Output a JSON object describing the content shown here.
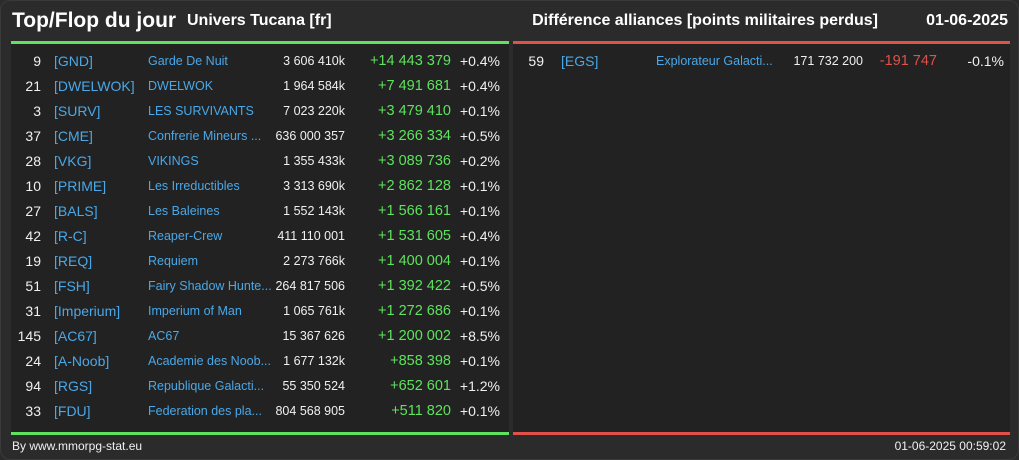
{
  "header": {
    "title": "Top/Flop du jour",
    "universe": "Univers Tucana [fr]",
    "subtitle": "Différence alliances [points militaires perdus]",
    "date": "01-06-2025"
  },
  "top": [
    {
      "rank": "9",
      "tag": "[GND]",
      "name": "Garde De Nuit",
      "points": "3 606 410k",
      "diff": "+14 443 379",
      "pct": "+0.4%"
    },
    {
      "rank": "21",
      "tag": "[DWELWOK]",
      "name": "DWELWOK",
      "points": "1 964 584k",
      "diff": "+7 491 681",
      "pct": "+0.4%"
    },
    {
      "rank": "3",
      "tag": "[SURV]",
      "name": "LES SURVIVANTS",
      "points": "7 023 220k",
      "diff": "+3 479 410",
      "pct": "+0.1%"
    },
    {
      "rank": "37",
      "tag": "[CME]",
      "name": "Confrerie Mineurs ...",
      "points": "636 000 357",
      "diff": "+3 266 334",
      "pct": "+0.5%"
    },
    {
      "rank": "28",
      "tag": "[VKG]",
      "name": "VIKINGS",
      "points": "1 355 433k",
      "diff": "+3 089 736",
      "pct": "+0.2%"
    },
    {
      "rank": "10",
      "tag": "[PRIME]",
      "name": "Les Irreductibles",
      "points": "3 313 690k",
      "diff": "+2 862 128",
      "pct": "+0.1%"
    },
    {
      "rank": "27",
      "tag": "[BALS]",
      "name": "Les Baleines",
      "points": "1 552 143k",
      "diff": "+1 566 161",
      "pct": "+0.1%"
    },
    {
      "rank": "42",
      "tag": "[R-C]",
      "name": "Reaper-Crew",
      "points": "411 110 001",
      "diff": "+1 531 605",
      "pct": "+0.4%"
    },
    {
      "rank": "19",
      "tag": "[REQ]",
      "name": "Requiem",
      "points": "2 273 766k",
      "diff": "+1 400 004",
      "pct": "+0.1%"
    },
    {
      "rank": "51",
      "tag": "[FSH]",
      "name": "Fairy Shadow Hunte...",
      "points": "264 817 506",
      "diff": "+1 392 422",
      "pct": "+0.5%"
    },
    {
      "rank": "31",
      "tag": "[Imperium]",
      "name": "Imperium of Man",
      "points": "1 065 761k",
      "diff": "+1 272 686",
      "pct": "+0.1%"
    },
    {
      "rank": "145",
      "tag": "[AC67]",
      "name": "AC67",
      "points": "15 367 626",
      "diff": "+1 200 002",
      "pct": "+8.5%"
    },
    {
      "rank": "24",
      "tag": "[A-Noob]",
      "name": "Academie des Noob...",
      "points": "1 677 132k",
      "diff": "+858 398",
      "pct": "+0.1%"
    },
    {
      "rank": "94",
      "tag": "[RGS]",
      "name": "Republique Galacti...",
      "points": "55 350 524",
      "diff": "+652 601",
      "pct": "+1.2%"
    },
    {
      "rank": "33",
      "tag": "[FDU]",
      "name": "Federation des pla...",
      "points": "804 568 905",
      "diff": "+511 820",
      "pct": "+0.1%"
    }
  ],
  "flop": [
    {
      "rank": "59",
      "tag": "[EGS]",
      "name": "Explorateur Galacti...",
      "points": "171 732 200",
      "diff": "-191 747",
      "pct": "-0.1%"
    }
  ],
  "footer": {
    "source": "By www.mmorpg-stat.eu",
    "timestamp": "01-06-2025 00:59:02"
  },
  "colors": {
    "top_accent": "#5de35d",
    "flop_accent": "#e0514a",
    "link": "#4aa8e8",
    "background": "#2b2b2b",
    "panel": "#222222"
  }
}
